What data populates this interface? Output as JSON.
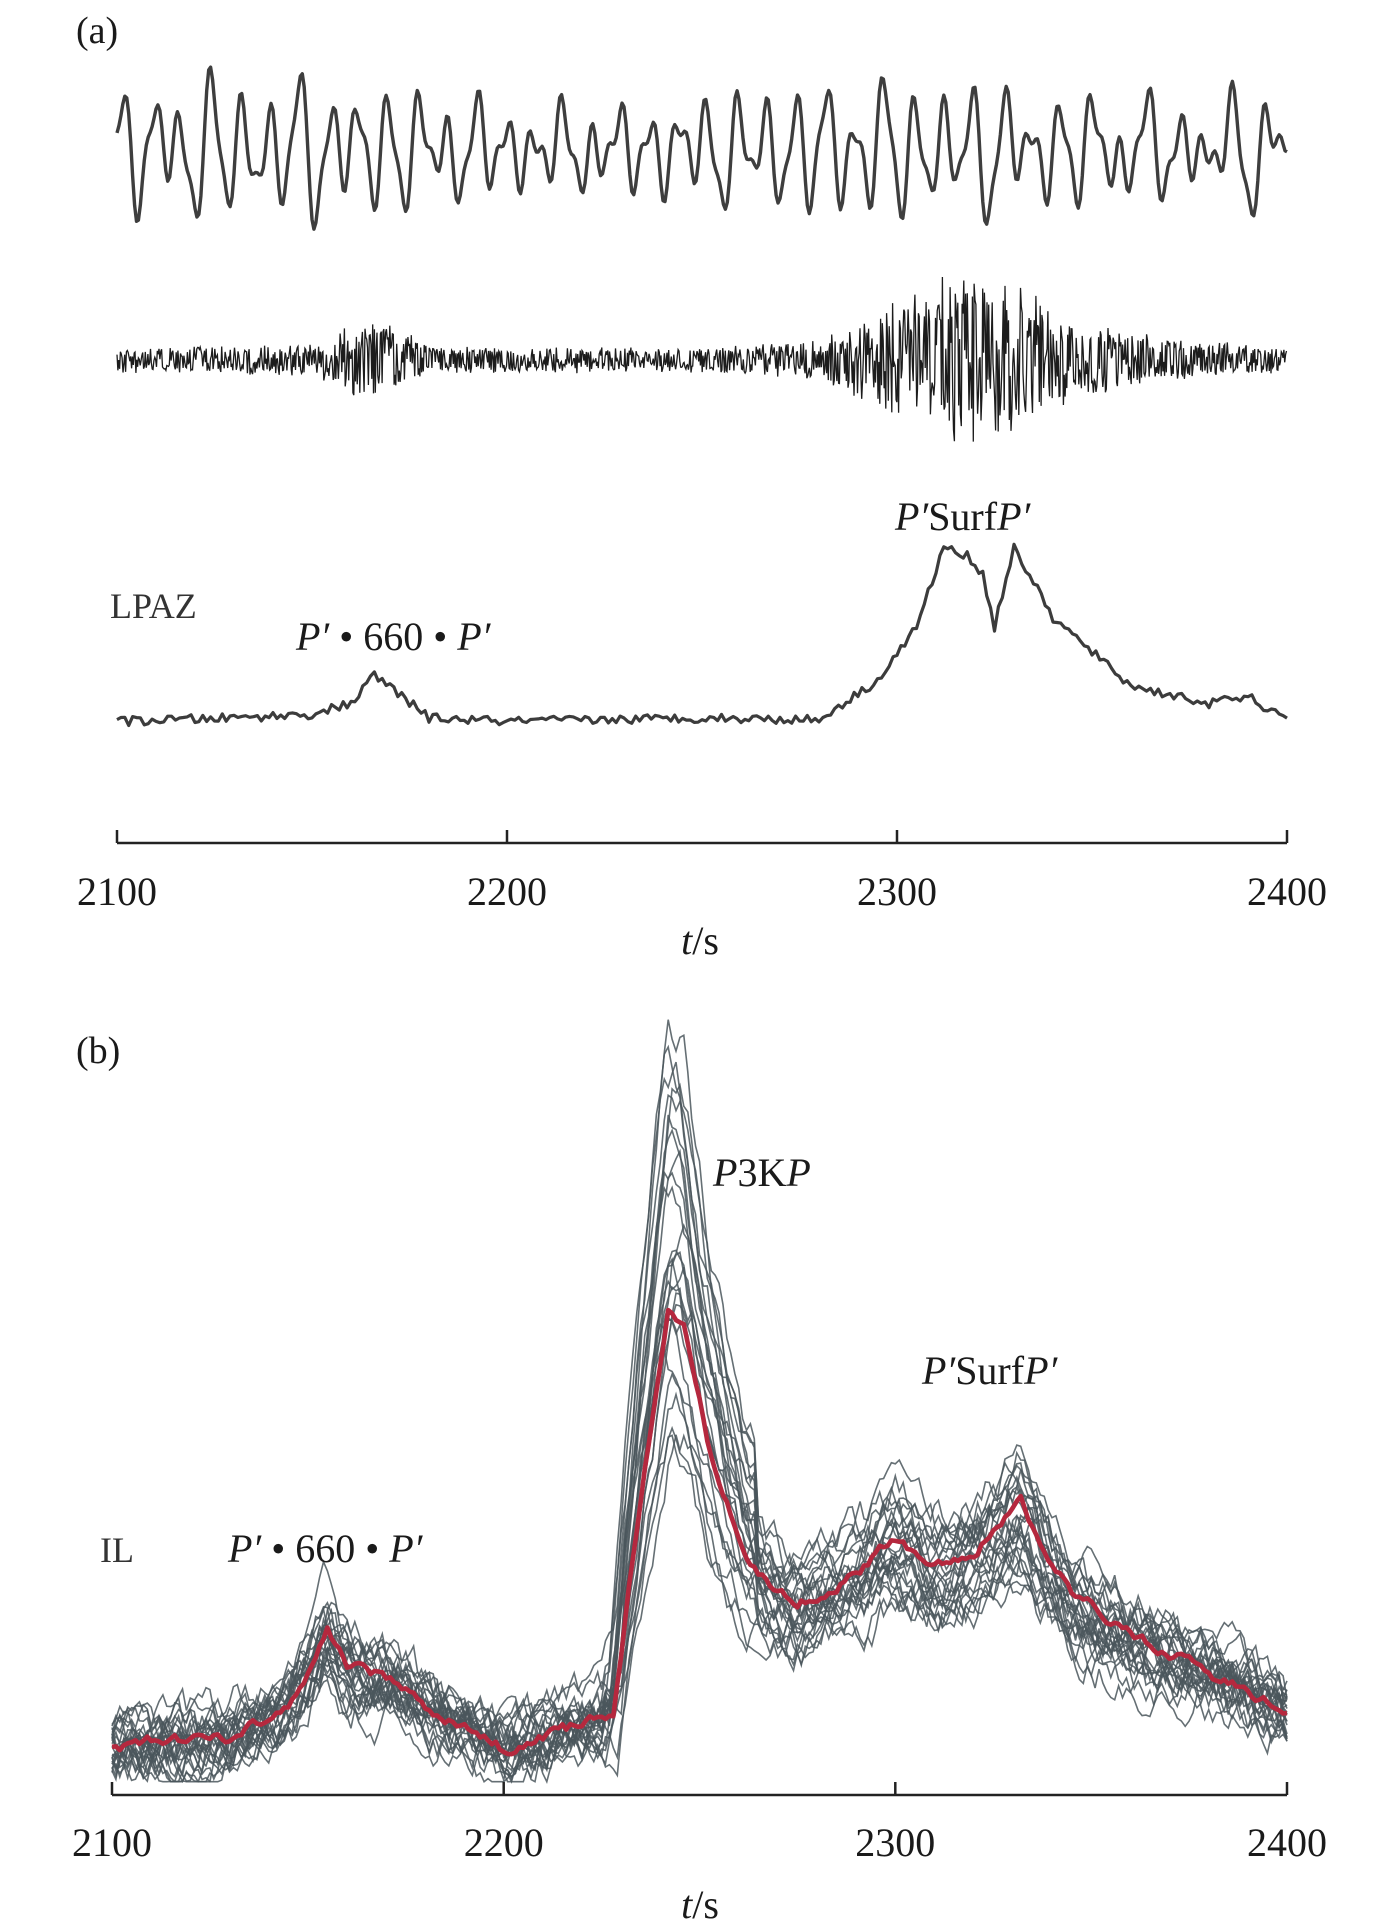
{
  "chart_data": [
    {
      "panel_label": "(a)",
      "type": "line",
      "xlabel_italic": "t",
      "xlabel_unit": "/s",
      "xlim": [
        2100,
        2400
      ],
      "xticks": [
        "2100",
        "2200",
        "2300",
        "2400"
      ],
      "station": "LPAZ",
      "traces": [
        {
          "kind": "long-period seismogram",
          "x_range": [
            2100,
            2400
          ]
        },
        {
          "kind": "high-frequency seismogram",
          "x_range": [
            2100,
            2400
          ]
        },
        {
          "kind": "envelope",
          "x": [
            2100,
            2130,
            2150,
            2160,
            2166,
            2172,
            2180,
            2200,
            2250,
            2280,
            2295,
            2305,
            2312,
            2318,
            2322,
            2325,
            2330,
            2340,
            2348,
            2360,
            2380,
            2390,
            2400
          ],
          "y": [
            0.02,
            0.04,
            0.06,
            0.12,
            0.28,
            0.18,
            0.04,
            0.02,
            0.04,
            0.03,
            0.25,
            0.55,
            1.0,
            0.95,
            0.85,
            0.55,
            1.0,
            0.6,
            0.45,
            0.22,
            0.12,
            0.16,
            0.02
          ]
        }
      ],
      "annotations": [
        {
          "parts": [
            "P′",
            " • ",
            "660",
            " • ",
            "P′"
          ],
          "x": 2170
        },
        {
          "parts": [
            "P′",
            "Surf",
            "P′"
          ],
          "x": 2320
        }
      ]
    },
    {
      "panel_label": "(b)",
      "type": "line",
      "xlabel_italic": "t",
      "xlabel_unit": "/s",
      "xlim": [
        2100,
        2400
      ],
      "xticks": [
        "2100",
        "2200",
        "2300",
        "2400"
      ],
      "station": "IL",
      "mean_trace": {
        "color": "#b5283e",
        "x": [
          2100,
          2130,
          2145,
          2155,
          2160,
          2170,
          2185,
          2200,
          2215,
          2228,
          2235,
          2242,
          2246,
          2252,
          2262,
          2275,
          2290,
          2300,
          2310,
          2320,
          2332,
          2345,
          2360,
          2380,
          2400
        ],
        "y": [
          0.05,
          0.07,
          0.14,
          0.3,
          0.22,
          0.2,
          0.11,
          0.04,
          0.08,
          0.12,
          0.6,
          1.0,
          0.98,
          0.72,
          0.45,
          0.36,
          0.43,
          0.5,
          0.44,
          0.48,
          0.58,
          0.38,
          0.3,
          0.21,
          0.12
        ]
      },
      "individual_traces_color": "#4a565c",
      "annotations": [
        {
          "parts": [
            "P′",
            " • ",
            "660",
            " • ",
            "P′"
          ],
          "x": 2160
        },
        {
          "parts": [
            "P",
            "3K",
            "P"
          ],
          "x": 2255
        },
        {
          "parts": [
            "P′",
            "Surf",
            "P′"
          ],
          "x": 2330
        }
      ]
    }
  ]
}
